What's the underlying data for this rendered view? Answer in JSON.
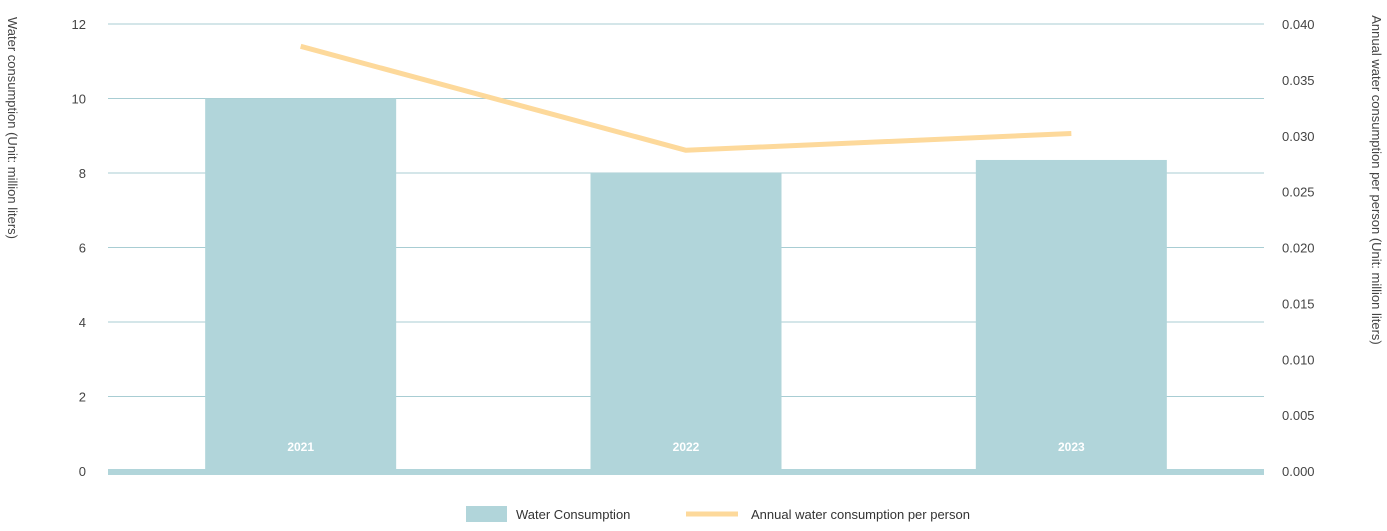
{
  "chart_data": {
    "type": "bar",
    "categories": [
      "2021",
      "2022",
      "2023"
    ],
    "series": [
      {
        "name": "Water Consumption",
        "type": "bar",
        "axis": "left",
        "values": [
          10.0,
          8.0,
          8.35
        ],
        "color": "#b1d5da"
      },
      {
        "name": "Annual water consumption per person",
        "type": "line",
        "axis": "right",
        "values": [
          0.038,
          0.0287,
          0.0302
        ],
        "color": "#fdd99b"
      }
    ],
    "ylabel": "Water consumption (Unit: million liters)",
    "y2label": "Annual water consumption per person (Unit: million liters)",
    "ylim": [
      0,
      12
    ],
    "y2lim": [
      0,
      0.04
    ],
    "yticks": [
      "0",
      "2",
      "4",
      "6",
      "8",
      "10",
      "12"
    ],
    "y2ticks": [
      "0.000",
      "0.005",
      "0.010",
      "0.015",
      "0.020",
      "0.025",
      "0.030",
      "0.035",
      "0.040"
    ],
    "grid": true,
    "grid_color": "#a8cdd3",
    "legend_position": "bottom-center"
  }
}
